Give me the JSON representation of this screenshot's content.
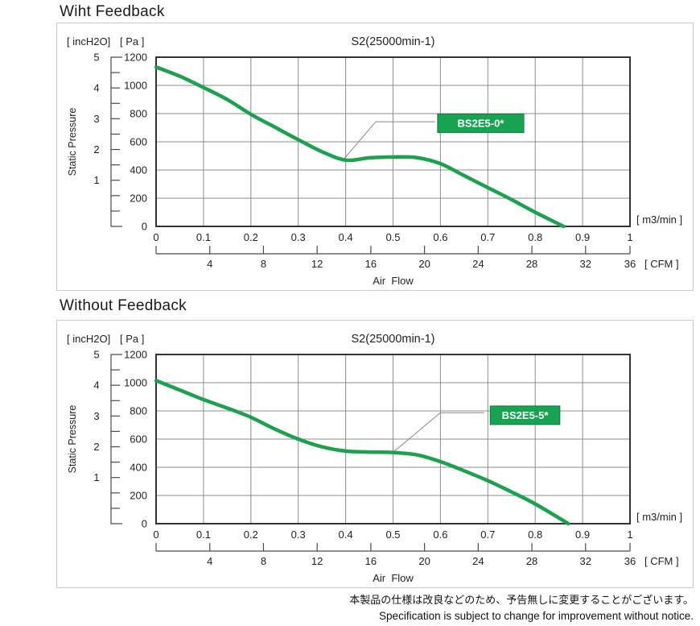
{
  "colors": {
    "curve": "#1ca14f",
    "label_box_fill": "#17a351",
    "label_box_border": "#0f7c3d",
    "label_text": "#ffffff",
    "grid": "#8c8c8c",
    "plot_border": "#333333",
    "axis": "#4a4a4a",
    "leader": "#888888",
    "text": "#222222"
  },
  "footer": {
    "jp": "本製品の仕様は改良などのため、予告無しに変更することがございます。",
    "en": "Specification is subject to change for improvement without notice."
  },
  "chart_data": [
    {
      "type": "line",
      "section_title": "Wiht Feedback",
      "title": "S2(25000min-1)",
      "left_unit_label": "[ incH2O]",
      "right_unit_label": "[ Pa ]",
      "y_axis_title": "Static Pressure",
      "x_axis_title": "Air  Flow",
      "x_unit_label": "[ m3/min ]",
      "x2_unit_label": "[ CFM ]",
      "xlim": [
        0,
        1
      ],
      "ylim_pa": [
        0,
        1200
      ],
      "x_ticks": [
        0,
        0.1,
        0.2,
        0.3,
        0.4,
        0.5,
        0.6,
        0.7,
        0.8,
        0.9,
        1
      ],
      "pa_ticks": [
        0,
        200,
        400,
        600,
        800,
        1000,
        1200
      ],
      "inch2o_ticks": [
        5,
        4,
        3,
        2,
        1
      ],
      "cfm_ticks": [
        4,
        8,
        12,
        16,
        20,
        24,
        28,
        32,
        36
      ],
      "cfm_per_m3min": 35.31,
      "series": [
        {
          "name": "BS2E5-0*",
          "points": [
            [
              0,
              1130
            ],
            [
              0.05,
              1065
            ],
            [
              0.1,
              985
            ],
            [
              0.15,
              900
            ],
            [
              0.2,
              795
            ],
            [
              0.25,
              705
            ],
            [
              0.3,
              615
            ],
            [
              0.35,
              530
            ],
            [
              0.4,
              470
            ],
            [
              0.45,
              486
            ],
            [
              0.5,
              492
            ],
            [
              0.55,
              488
            ],
            [
              0.6,
              445
            ],
            [
              0.65,
              360
            ],
            [
              0.7,
              275
            ],
            [
              0.75,
              190
            ],
            [
              0.8,
              100
            ],
            [
              0.86,
              0
            ]
          ]
        }
      ],
      "label_box": {
        "x_left": 0.594,
        "x_right": 0.776,
        "pa_center": 731
      },
      "leader_points": [
        [
          0.397,
          480
        ],
        [
          0.4635,
          742
        ],
        [
          0.589,
          742
        ]
      ]
    },
    {
      "type": "line",
      "section_title": "Without Feedback",
      "title": "S2(25000min-1)",
      "left_unit_label": "[ incH2O]",
      "right_unit_label": "[ Pa ]",
      "y_axis_title": "Static Pressure",
      "x_axis_title": "Air  Flow",
      "x_unit_label": "[ m3/min ]",
      "x2_unit_label": "[ CFM ]",
      "xlim": [
        0,
        1
      ],
      "ylim_pa": [
        0,
        1200
      ],
      "x_ticks": [
        0,
        0.1,
        0.2,
        0.3,
        0.4,
        0.5,
        0.6,
        0.7,
        0.8,
        0.9,
        1
      ],
      "pa_ticks": [
        0,
        200,
        400,
        600,
        800,
        1000,
        1200
      ],
      "inch2o_ticks": [
        5,
        4,
        3,
        2,
        1
      ],
      "cfm_ticks": [
        4,
        8,
        12,
        16,
        20,
        24,
        28,
        32,
        36
      ],
      "cfm_per_m3min": 35.31,
      "series": [
        {
          "name": "BS2E5-5*",
          "points": [
            [
              0,
              1015
            ],
            [
              0.05,
              948
            ],
            [
              0.1,
              880
            ],
            [
              0.15,
              820
            ],
            [
              0.2,
              755
            ],
            [
              0.25,
              672
            ],
            [
              0.3,
              600
            ],
            [
              0.35,
              545
            ],
            [
              0.4,
              515
            ],
            [
              0.45,
              508
            ],
            [
              0.5,
              505
            ],
            [
              0.55,
              488
            ],
            [
              0.6,
              440
            ],
            [
              0.65,
              375
            ],
            [
              0.7,
              305
            ],
            [
              0.75,
              225
            ],
            [
              0.8,
              140
            ],
            [
              0.87,
              0
            ]
          ]
        }
      ],
      "label_box": {
        "x_left": 0.705,
        "x_right": 0.852,
        "pa_center": 769
      },
      "leader_points": [
        [
          0.503,
          515
        ],
        [
          0.6,
          787
        ],
        [
          0.693,
          787
        ]
      ]
    }
  ]
}
